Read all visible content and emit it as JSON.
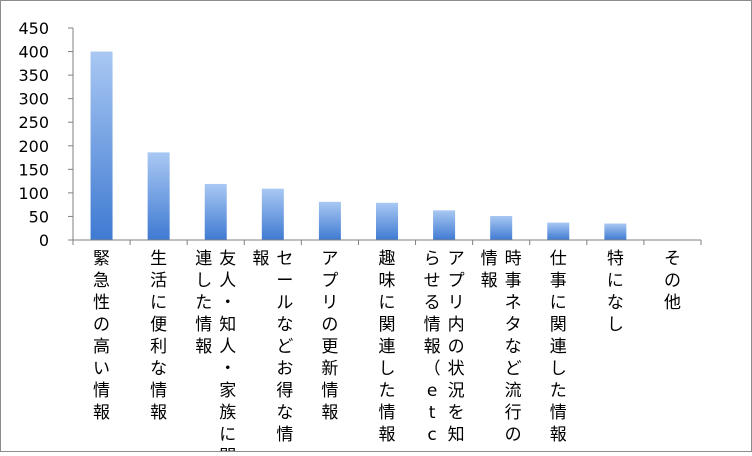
{
  "chart_data": {
    "type": "bar",
    "title": "",
    "xlabel": "",
    "ylabel": "",
    "ylim": [
      0,
      450
    ],
    "yticks": [
      0,
      50,
      100,
      150,
      200,
      250,
      300,
      350,
      400,
      450
    ],
    "grid": false,
    "legend": "none",
    "bar_color_top": "#a9c8f3",
    "bar_color_bottom": "#3f7ad2",
    "categories": [
      "緊急性の高い情報",
      "生活に便利な情報",
      "友人・知人・家族に関連した情報",
      "セールなどお得な情報",
      "アプリの更新情報",
      "趣味に関連した情報",
      "アプリ内の状況を知らせる情報（etc.",
      "時事ネタなど流行の情報",
      "仕事に関連した情報",
      "特になし",
      "その他"
    ],
    "category_label_lines": [
      [
        "緊急性の高い情報"
      ],
      [
        "生活に便利な情報"
      ],
      [
        "友人・知人・家族に関",
        "連した情報"
      ],
      [
        "セールなどお得な情",
        "報"
      ],
      [
        "アプリの更新情報"
      ],
      [
        "趣味に関連した情報"
      ],
      [
        "アプリ内の状況を知",
        "らせる情報（etc."
      ],
      [
        "時事ネタなど流行の",
        "情報"
      ],
      [
        "仕事に関連した情報"
      ],
      [
        "特になし"
      ],
      [
        "その他"
      ]
    ],
    "values": [
      400,
      186,
      119,
      109,
      81,
      79,
      63,
      51,
      37,
      35,
      0
    ]
  }
}
